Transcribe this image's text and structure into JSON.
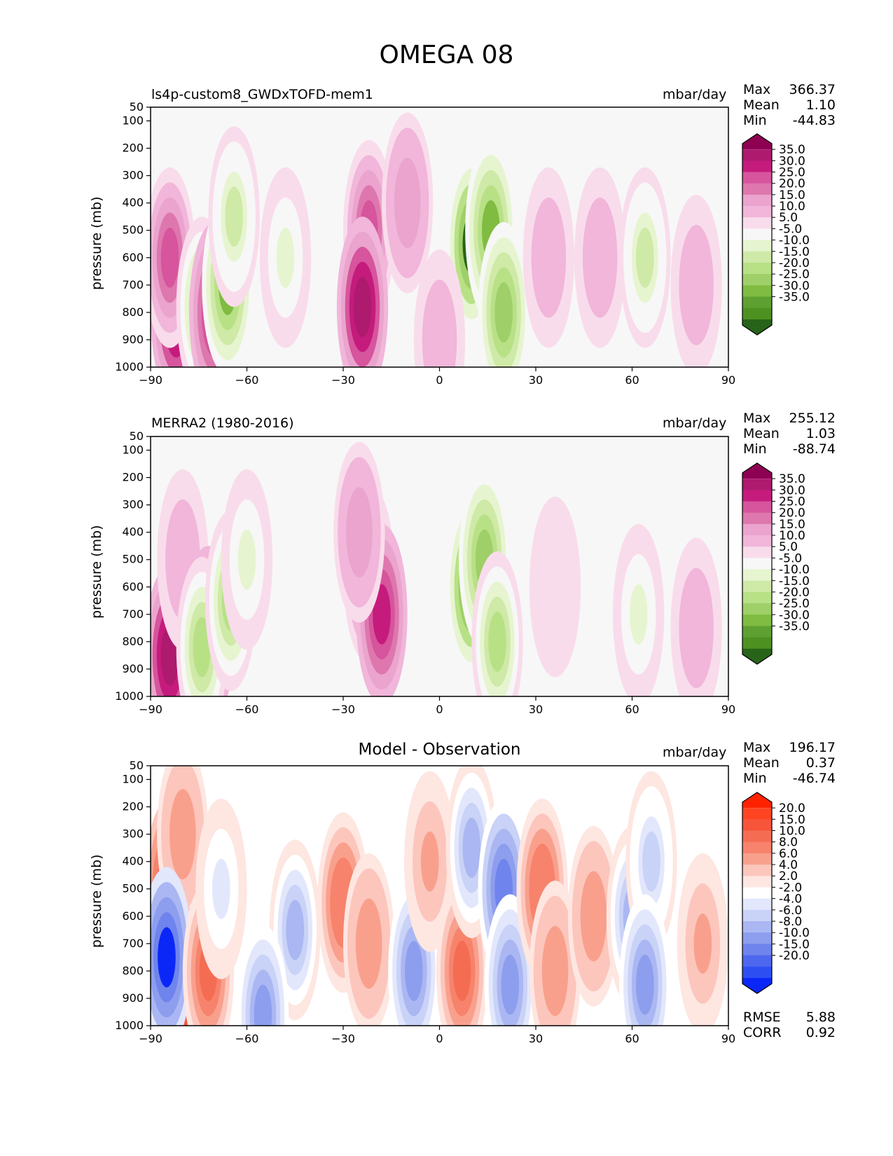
{
  "figure_title": "OMEGA 08",
  "chart_data": [
    {
      "type": "heatmap",
      "title": "ls4p-custom8_GWDxTOFD-mem1",
      "units": "mbar/day",
      "xlabel": "",
      "ylabel": "pressure (mb)",
      "xlim": [
        -90,
        90
      ],
      "ylim": [
        1000,
        50
      ],
      "xticks": [
        "−90",
        "−60",
        "−30",
        "0",
        "30",
        "60",
        "90"
      ],
      "yticks": [
        "50",
        "100",
        "200",
        "300",
        "400",
        "500",
        "600",
        "700",
        "800",
        "900",
        "1000"
      ],
      "stats": {
        "max_label": "Max",
        "max": "366.37",
        "mean_label": "Mean",
        "mean": "1.10",
        "min_label": "Min",
        "min": "-44.83"
      },
      "colorbar_levels": [
        "35.0",
        "30.0",
        "25.0",
        "20.0",
        "15.0",
        "10.0",
        "5.0",
        "-5.0",
        "-10.0",
        "-15.0",
        "-20.0",
        "-25.0",
        "-30.0",
        "-35.0"
      ],
      "colorbar_colors": [
        "#8e0152",
        "#ad1a6e",
        "#c51b7d",
        "#d6559d",
        "#de77ae",
        "#eaa4cd",
        "#f1b6da",
        "#f9dceb",
        "#f7f7f7",
        "#e6f5d0",
        "#cfe9a7",
        "#b8e186",
        "#9fcf68",
        "#7fbc41",
        "#5fa032",
        "#4d9221",
        "#276419"
      ],
      "features": [
        {
          "lon": -82,
          "p": 800,
          "value": 35
        },
        {
          "lon": -84,
          "p": 600,
          "value": 25
        },
        {
          "lon": -74,
          "p": 780,
          "value": -20
        },
        {
          "lon": -70,
          "p": 800,
          "value": 30
        },
        {
          "lon": -66,
          "p": 700,
          "value": -30
        },
        {
          "lon": -64,
          "p": 450,
          "value": -15
        },
        {
          "lon": -48,
          "p": 600,
          "value": -10
        },
        {
          "lon": -22,
          "p": 500,
          "value": 25
        },
        {
          "lon": -24,
          "p": 780,
          "value": 35
        },
        {
          "lon": -10,
          "p": 400,
          "value": 15
        },
        {
          "lon": 10,
          "p": 550,
          "value": -35
        },
        {
          "lon": 16,
          "p": 500,
          "value": -30
        },
        {
          "lon": 20,
          "p": 800,
          "value": -25
        },
        {
          "lon": 0,
          "p": 900,
          "value": 10
        },
        {
          "lon": 34,
          "p": 600,
          "value": 10
        },
        {
          "lon": 50,
          "p": 600,
          "value": 10
        },
        {
          "lon": 64,
          "p": 600,
          "value": -15
        },
        {
          "lon": 80,
          "p": 700,
          "value": 10
        }
      ]
    },
    {
      "type": "heatmap",
      "title": "MERRA2 (1980-2016)",
      "units": "mbar/day",
      "xlabel": "",
      "ylabel": "pressure (mb)",
      "xlim": [
        -90,
        90
      ],
      "ylim": [
        1000,
        50
      ],
      "xticks": [
        "−90",
        "−60",
        "−30",
        "0",
        "30",
        "60",
        "90"
      ],
      "yticks": [
        "50",
        "100",
        "200",
        "300",
        "400",
        "500",
        "600",
        "700",
        "800",
        "900",
        "1000"
      ],
      "stats": {
        "max_label": "Max",
        "max": "255.12",
        "mean_label": "Mean",
        "mean": "1.03",
        "min_label": "Min",
        "min": "-88.74"
      },
      "colorbar_levels": [
        "35.0",
        "30.0",
        "25.0",
        "20.0",
        "15.0",
        "10.0",
        "5.0",
        "-5.0",
        "-10.0",
        "-15.0",
        "-20.0",
        "-25.0",
        "-30.0",
        "-35.0"
      ],
      "colorbar_colors": [
        "#8e0152",
        "#ad1a6e",
        "#c51b7d",
        "#d6559d",
        "#de77ae",
        "#eaa4cd",
        "#f1b6da",
        "#f9dceb",
        "#f7f7f7",
        "#e6f5d0",
        "#cfe9a7",
        "#b8e186",
        "#9fcf68",
        "#7fbc41",
        "#5fa032",
        "#4d9221",
        "#276419"
      ],
      "features": [
        {
          "lon": -84,
          "p": 850,
          "value": 35
        },
        {
          "lon": -80,
          "p": 500,
          "value": 10
        },
        {
          "lon": -72,
          "p": 780,
          "value": 30
        },
        {
          "lon": -74,
          "p": 820,
          "value": -20
        },
        {
          "lon": -65,
          "p": 650,
          "value": -20
        },
        {
          "lon": -60,
          "p": 500,
          "value": -10
        },
        {
          "lon": -22,
          "p": 550,
          "value": 25
        },
        {
          "lon": -18,
          "p": 700,
          "value": 30
        },
        {
          "lon": -25,
          "p": 400,
          "value": 15
        },
        {
          "lon": 10,
          "p": 600,
          "value": -35
        },
        {
          "lon": 14,
          "p": 500,
          "value": -25
        },
        {
          "lon": 18,
          "p": 800,
          "value": -20
        },
        {
          "lon": 36,
          "p": 600,
          "value": 5
        },
        {
          "lon": 62,
          "p": 700,
          "value": -10
        },
        {
          "lon": 80,
          "p": 750,
          "value": 10
        }
      ]
    },
    {
      "type": "heatmap",
      "title": "Model - Observation",
      "units": "mbar/day",
      "xlabel": "",
      "ylabel": "pressure (mb)",
      "xlim": [
        -90,
        90
      ],
      "ylim": [
        1000,
        50
      ],
      "xticks": [
        "−90",
        "−60",
        "−30",
        "0",
        "30",
        "60",
        "90"
      ],
      "yticks": [
        "50",
        "100",
        "200",
        "300",
        "400",
        "500",
        "600",
        "700",
        "800",
        "900",
        "1000"
      ],
      "stats": {
        "max_label": "Max",
        "max": "196.17",
        "mean_label": "Mean",
        "mean": "0.37",
        "min_label": "Min",
        "min": "-46.74",
        "rmse_label": "RMSE",
        "rmse": "5.88",
        "corr_label": "CORR",
        "corr": "0.92"
      },
      "colorbar_levels": [
        "20.0",
        "15.0",
        "10.0",
        "8.0",
        "6.0",
        "4.0",
        "2.0",
        "-2.0",
        "-4.0",
        "-6.0",
        "-8.0",
        "-10.0",
        "-15.0",
        "-20.0"
      ],
      "colorbar_colors": [
        "#ff2200",
        "#ff4422",
        "#f6553a",
        "#f46d52",
        "#f7836c",
        "#f9a08d",
        "#fcc6bc",
        "#fee6e1",
        "#ffffff",
        "#e2e7fc",
        "#c9d2f7",
        "#aab7f2",
        "#8d9eee",
        "#6f84ec",
        "#4d68ee",
        "#2d4ff2",
        "#0b27f7"
      ],
      "features": [
        {
          "lon": -84,
          "p": 500,
          "value": 12
        },
        {
          "lon": -80,
          "p": 300,
          "value": 6
        },
        {
          "lon": -82,
          "p": 850,
          "value": 20
        },
        {
          "lon": -85,
          "p": 750,
          "value": -20
        },
        {
          "lon": -72,
          "p": 800,
          "value": 10
        },
        {
          "lon": -68,
          "p": 500,
          "value": -4
        },
        {
          "lon": -45,
          "p": 650,
          "value": -8
        },
        {
          "lon": -55,
          "p": 960,
          "value": -10
        },
        {
          "lon": -30,
          "p": 550,
          "value": 8
        },
        {
          "lon": -22,
          "p": 700,
          "value": 6
        },
        {
          "lon": -8,
          "p": 800,
          "value": -10
        },
        {
          "lon": -3,
          "p": 400,
          "value": 5
        },
        {
          "lon": 7,
          "p": 800,
          "value": 10
        },
        {
          "lon": 10,
          "p": 350,
          "value": -8
        },
        {
          "lon": 20,
          "p": 500,
          "value": -15
        },
        {
          "lon": 22,
          "p": 850,
          "value": -12
        },
        {
          "lon": 32,
          "p": 500,
          "value": 8
        },
        {
          "lon": 36,
          "p": 800,
          "value": 6
        },
        {
          "lon": 48,
          "p": 600,
          "value": 6
        },
        {
          "lon": 60,
          "p": 600,
          "value": -8
        },
        {
          "lon": 66,
          "p": 400,
          "value": -6
        },
        {
          "lon": 64,
          "p": 850,
          "value": -10
        },
        {
          "lon": 82,
          "p": 700,
          "value": 5
        }
      ]
    }
  ]
}
